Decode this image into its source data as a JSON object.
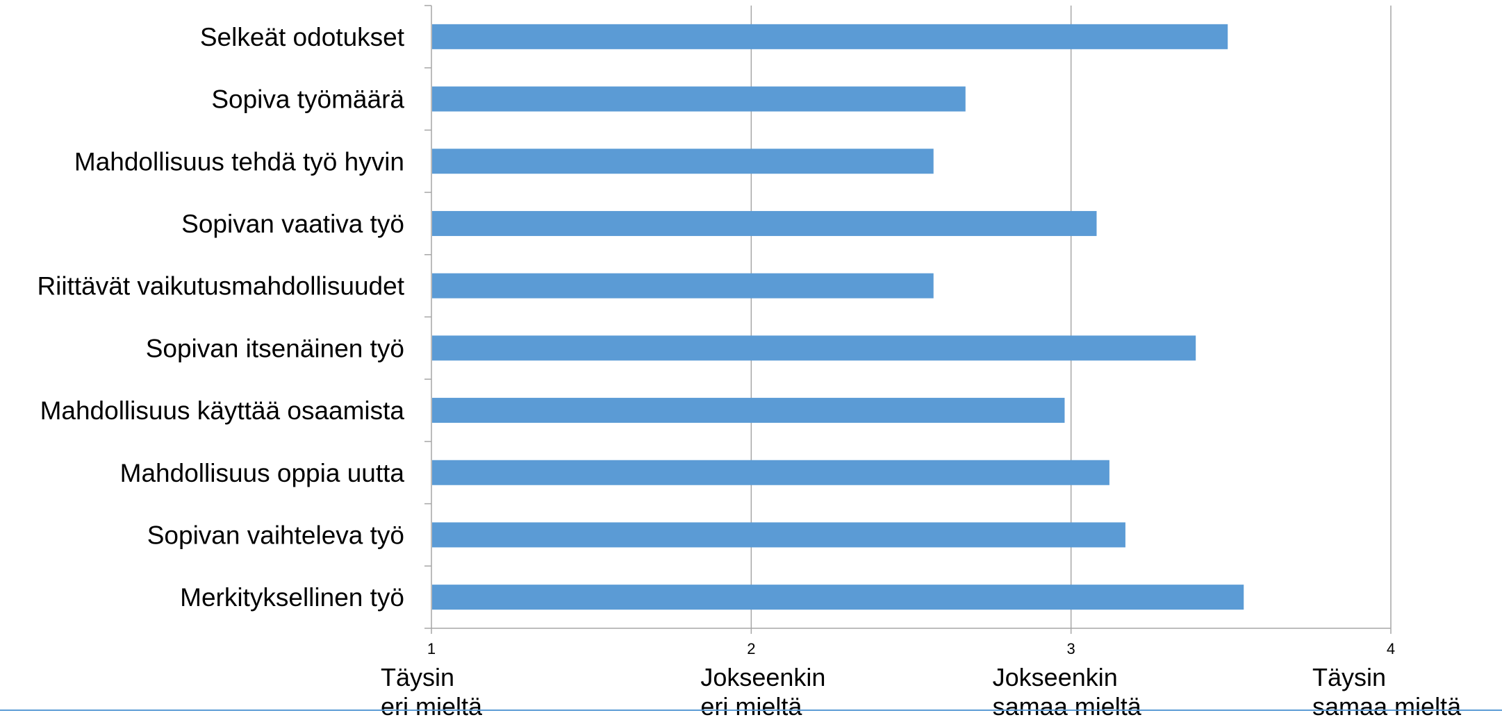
{
  "chart_data": {
    "type": "bar",
    "orientation": "horizontal",
    "categories": [
      "Selkeät odotukset",
      "Sopiva työmäärä",
      "Mahdollisuus tehdä työ hyvin",
      "Sopivan vaativa työ",
      "Riittävät vaikutusmahdollisuudet",
      "Sopivan itsenäinen työ",
      "Mahdollisuus käyttää osaamista",
      "Mahdollisuus oppia uutta",
      "Sopivan vaihteleva työ",
      "Merkityksellinen työ"
    ],
    "values": [
      3.49,
      2.67,
      2.57,
      3.08,
      2.57,
      3.39,
      2.98,
      3.12,
      3.17,
      3.54
    ],
    "xlim": [
      1,
      4
    ],
    "xticks": [
      "1",
      "2",
      "3",
      "4"
    ],
    "grid": true,
    "legend": "none",
    "title": "",
    "xlabel": "",
    "ylabel": "",
    "scale_labels": [
      [
        "Täysin",
        "eri mieltä"
      ],
      [
        "Jokseenkin",
        "eri mieltä"
      ],
      [
        "Jokseenkin",
        "samaa mieltä"
      ],
      [
        "Täysin",
        "samaa mieltä"
      ]
    ]
  },
  "colors": {
    "bar": "#5b9bd5",
    "gridline": "#a6a6a6",
    "axis": "#a6a6a6",
    "bottom_rule": "#5b9bd5",
    "text": "#000000"
  }
}
